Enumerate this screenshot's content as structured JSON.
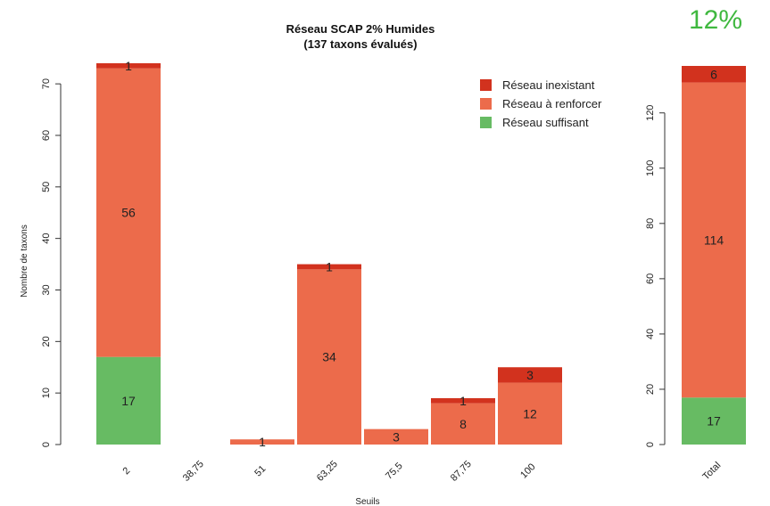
{
  "percent_badge": "12%",
  "colors": {
    "inexistant": "#d2321e",
    "renforcer": "#ec6b4b",
    "suffisant": "#67bb63"
  },
  "chart_data": [
    {
      "type": "bar",
      "stacked": true,
      "title_line1": "Réseau SCAP 2% Humides",
      "title_line2": "(137 taxons évalués)",
      "xlabel": "Seuils",
      "ylabel": "Nombre de taxons",
      "categories": [
        "2",
        "38,75",
        "51",
        "63,25",
        "75,5",
        "87,75",
        "100"
      ],
      "ylim": [
        0,
        74
      ],
      "yticks": [
        0,
        10,
        20,
        30,
        40,
        50,
        60,
        70
      ],
      "legend_position": "top-right",
      "legend": [
        "Réseau inexistant",
        "Réseau à renforcer",
        "Réseau suffisant"
      ],
      "series": [
        {
          "name": "Réseau suffisant",
          "key": "suffisant",
          "values": [
            17,
            0,
            0,
            0,
            0,
            0,
            0
          ]
        },
        {
          "name": "Réseau à renforcer",
          "key": "renforcer",
          "values": [
            56,
            0,
            1,
            34,
            3,
            8,
            12
          ]
        },
        {
          "name": "Réseau inexistant",
          "key": "inexistant",
          "values": [
            1,
            0,
            0,
            1,
            0,
            1,
            3
          ]
        }
      ]
    },
    {
      "type": "bar",
      "stacked": true,
      "categories": [
        "Total"
      ],
      "ylim": [
        0,
        137
      ],
      "yticks": [
        0,
        20,
        40,
        60,
        80,
        100,
        120
      ],
      "series": [
        {
          "name": "Réseau suffisant",
          "key": "suffisant",
          "values": [
            17
          ]
        },
        {
          "name": "Réseau à renforcer",
          "key": "renforcer",
          "values": [
            114
          ]
        },
        {
          "name": "Réseau inexistant",
          "key": "inexistant",
          "values": [
            6
          ]
        }
      ]
    }
  ]
}
